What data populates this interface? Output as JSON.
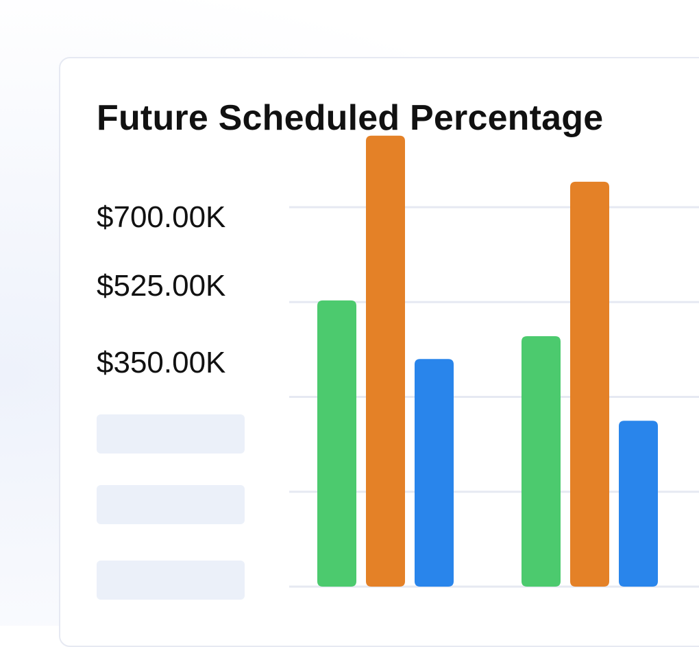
{
  "chart_data": {
    "type": "bar",
    "title": "Future Scheduled Percentage",
    "xlabel": "",
    "ylabel": "",
    "ylim": [
      0,
      875
    ],
    "y_tick_values": [
      700,
      525,
      350,
      175,
      0
    ],
    "y_tick_labels": [
      "$700.00K",
      "$525.00K",
      "$350.00K"
    ],
    "y_tick_labels_hidden": 2,
    "grid": true,
    "legend": "none",
    "categories": [
      "",
      ""
    ],
    "series": [
      {
        "color": "#4cca6e",
        "values": [
          528,
          462
        ]
      },
      {
        "color": "#e48127",
        "values": [
          832,
          747
        ]
      },
      {
        "color": "#2985eb",
        "values": [
          420,
          306
        ]
      }
    ]
  },
  "colors": {
    "gridline": "#e6e9f2",
    "placeholder": "#ebf0f9",
    "text": "#111111"
  }
}
